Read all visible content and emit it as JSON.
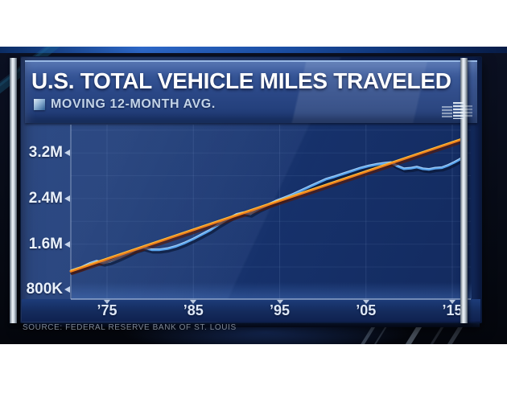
{
  "header": {
    "title": "U.S. TOTAL VEHICLE MILES TRAVELED",
    "subtitle": "MOVING 12-MONTH AVG."
  },
  "footer": {
    "source": "SOURCE: FEDERAL RESERVE BANK OF ST. LOUIS"
  },
  "colors": {
    "line_blue": "#5aa5ee",
    "line_orange": "#f0811c",
    "panel_background": "#17336e",
    "header_band": "#2b4887",
    "axis_text": "#eaf2fc",
    "backdrop": "#070b16"
  },
  "chart_data": {
    "type": "line",
    "title": "U.S. TOTAL VEHICLE MILES TRAVELED",
    "subtitle": "MOVING 12-MONTH AVG.",
    "source": "SOURCE: FEDERAL RESERVE BANK OF ST. LOUIS",
    "xlabel": "",
    "ylabel": "",
    "x_range": [
      1970.8,
      2016.5
    ],
    "y_range_shown": [
      0.63,
      3.7
    ],
    "y_unit": "millions (of miles, 12-month moving total)",
    "grid": {
      "h_min": 1.2,
      "h_max": 3.6,
      "h_step": 0.4,
      "vertical_at_xticks": true
    },
    "legend": "none",
    "y_axis": {
      "ticks": [
        {
          "value": 3.2,
          "label": "3.2M"
        },
        {
          "value": 2.4,
          "label": "2.4M"
        },
        {
          "value": 1.6,
          "label": "1.6M"
        },
        {
          "value": 0.8,
          "label": "800K"
        }
      ]
    },
    "x_axis": {
      "ticks": [
        {
          "value": 1975,
          "label": "’75"
        },
        {
          "value": 1985,
          "label": "’85"
        },
        {
          "value": 1995,
          "label": "’95"
        },
        {
          "value": 2005,
          "label": "’05"
        },
        {
          "value": 2015,
          "label": "’15"
        }
      ]
    },
    "series": [
      {
        "name": "vehicle-miles-12mo-avg",
        "color": "#5aa5ee",
        "highlight": "rgba(200,230,255,0.7)",
        "shadow": "rgba(6,18,45,0.6)",
        "points": [
          [
            1970.8,
            1.13
          ],
          [
            1972,
            1.19
          ],
          [
            1973,
            1.26
          ],
          [
            1973.8,
            1.3
          ],
          [
            1974.6,
            1.27
          ],
          [
            1975.4,
            1.3
          ],
          [
            1976.4,
            1.36
          ],
          [
            1977.4,
            1.43
          ],
          [
            1978.3,
            1.5
          ],
          [
            1979.2,
            1.54
          ],
          [
            1980.2,
            1.5
          ],
          [
            1981.1,
            1.5
          ],
          [
            1982,
            1.52
          ],
          [
            1983,
            1.56
          ],
          [
            1984,
            1.62
          ],
          [
            1985,
            1.69
          ],
          [
            1986,
            1.77
          ],
          [
            1987,
            1.85
          ],
          [
            1988,
            1.95
          ],
          [
            1989,
            2.04
          ],
          [
            1990,
            2.12
          ],
          [
            1990.8,
            2.15
          ],
          [
            1991.6,
            2.13
          ],
          [
            1992.5,
            2.21
          ],
          [
            1993.5,
            2.28
          ],
          [
            1994.5,
            2.35
          ],
          [
            1995.5,
            2.41
          ],
          [
            1996.5,
            2.47
          ],
          [
            1997.5,
            2.54
          ],
          [
            1998.5,
            2.61
          ],
          [
            1999.5,
            2.68
          ],
          [
            2000.4,
            2.74
          ],
          [
            2001.3,
            2.78
          ],
          [
            2002.3,
            2.83
          ],
          [
            2003.3,
            2.88
          ],
          [
            2004.3,
            2.93
          ],
          [
            2005.3,
            2.97
          ],
          [
            2006.3,
            3.0
          ],
          [
            2007.2,
            3.02
          ],
          [
            2007.9,
            3.03
          ],
          [
            2008.6,
            2.97
          ],
          [
            2009.4,
            2.92
          ],
          [
            2010.2,
            2.93
          ],
          [
            2010.9,
            2.95
          ],
          [
            2011.6,
            2.92
          ],
          [
            2012.3,
            2.91
          ],
          [
            2013,
            2.93
          ],
          [
            2013.8,
            2.94
          ],
          [
            2014.5,
            2.98
          ],
          [
            2015.2,
            3.03
          ],
          [
            2015.8,
            3.08
          ],
          [
            2016.3,
            3.13
          ]
        ]
      },
      {
        "name": "linear-trend",
        "color": "#f0811c",
        "highlight": "#ffc53e",
        "shadow": "rgba(86,25,8,0.65)",
        "points": [
          [
            1970.8,
            1.125
          ],
          [
            2016.5,
            3.46
          ]
        ]
      }
    ]
  }
}
